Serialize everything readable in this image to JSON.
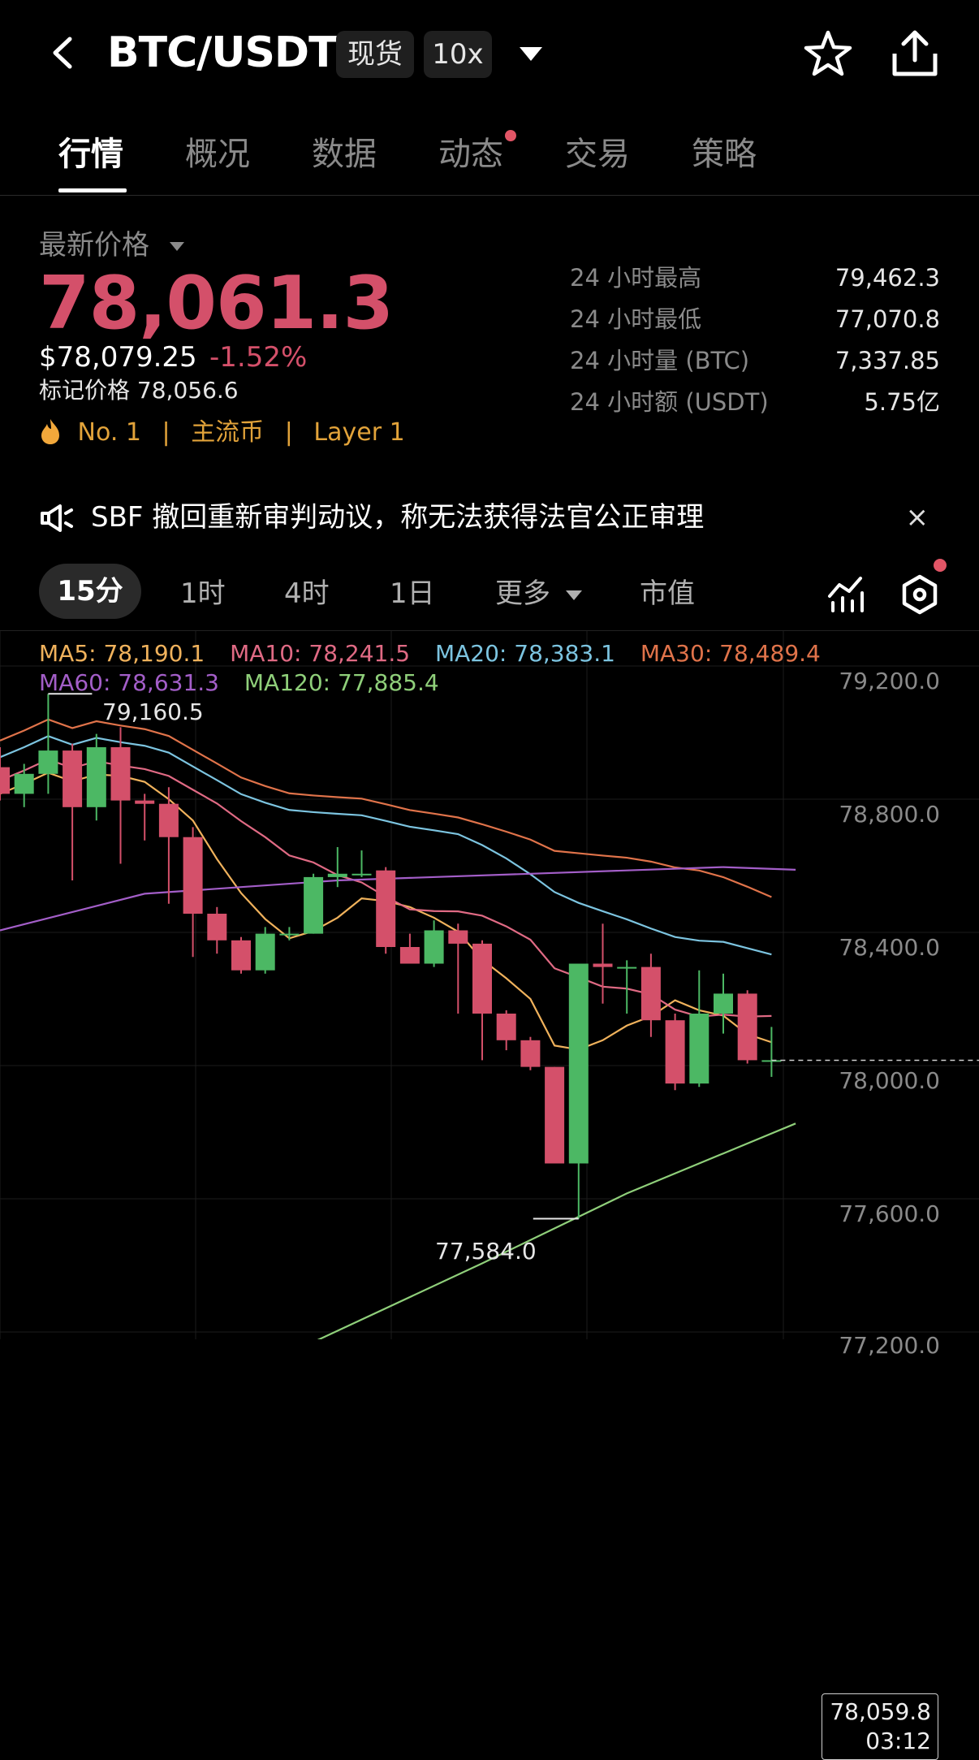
{
  "header": {
    "pair": "BTC/USDT",
    "market_tag": "现货",
    "leverage_tag": "10x",
    "icons": [
      "back-icon",
      "dropdown-caret-icon",
      "star-icon",
      "share-icon"
    ]
  },
  "tabs": [
    {
      "label": "行情",
      "active": true
    },
    {
      "label": "概况",
      "active": false
    },
    {
      "label": "数据",
      "active": false
    },
    {
      "label": "动态",
      "active": false,
      "badge": true
    },
    {
      "label": "交易",
      "active": false
    },
    {
      "label": "策略",
      "active": false
    }
  ],
  "price": {
    "latest_label": "最新价格",
    "last": "78,061.3",
    "usd": "$78,079.25",
    "change": "-1.52%",
    "mark_label": "标记价格",
    "mark": "78,056.6",
    "rank": "No. 1",
    "tag1": "主流币",
    "tag2": "Layer 1"
  },
  "stats": [
    {
      "label": "24 小时最高",
      "value": "79,462.3"
    },
    {
      "label": "24 小时最低",
      "value": "77,070.8"
    },
    {
      "label": "24 小时量 (BTC)",
      "value": "7,337.85"
    },
    {
      "label": "24 小时额 (USDT)",
      "value": "5.75亿"
    }
  ],
  "news": {
    "text": "SBF 撤回重新审判动议，称无法获得法官公正审理",
    "close": "×"
  },
  "intervals": {
    "items": [
      "15分",
      "1时",
      "4时",
      "1日",
      "更多",
      "市值"
    ],
    "active": "15分"
  },
  "colors": {
    "up": "#4cb864",
    "down": "#d4506a",
    "ma5": "#f0b25c",
    "ma10": "#e06a84",
    "ma20": "#7cc4e0",
    "ma30": "#e0734a",
    "ma60": "#a35ec8",
    "ma120": "#8fcf7a",
    "orange": "#e2a33a"
  },
  "chart_data": {
    "type": "candlestick",
    "interval": "15分",
    "y_ticks": [
      "79,200.0",
      "78,800.0",
      "78,400.0",
      "78,000.0",
      "77,600.0",
      "77,200.0"
    ],
    "ylim": [
      77150,
      79350
    ],
    "ma": [
      {
        "name": "MA5",
        "value": "78,190.1"
      },
      {
        "name": "MA10",
        "value": "78,241.5"
      },
      {
        "name": "MA20",
        "value": "78,383.1"
      },
      {
        "name": "MA30",
        "value": "78,489.4"
      },
      {
        "name": "MA60",
        "value": "78,631.3"
      },
      {
        "name": "MA120",
        "value": "77,885.4"
      }
    ],
    "high_marker": "79,160.5",
    "low_marker": "77,584.0",
    "current_price": "78,059.8",
    "countdown": "03:12",
    "candles": [
      {
        "o": 78940,
        "h": 79000,
        "l": 78840,
        "c": 78860
      },
      {
        "o": 78860,
        "h": 78950,
        "l": 78820,
        "c": 78920
      },
      {
        "o": 78920,
        "h": 79160,
        "l": 78860,
        "c": 78990
      },
      {
        "o": 78990,
        "h": 79010,
        "l": 78600,
        "c": 78820
      },
      {
        "o": 78820,
        "h": 79040,
        "l": 78780,
        "c": 79000
      },
      {
        "o": 79000,
        "h": 79060,
        "l": 78650,
        "c": 78840
      },
      {
        "o": 78840,
        "h": 78860,
        "l": 78720,
        "c": 78830
      },
      {
        "o": 78830,
        "h": 78880,
        "l": 78530,
        "c": 78730
      },
      {
        "o": 78730,
        "h": 78760,
        "l": 78370,
        "c": 78500
      },
      {
        "o": 78500,
        "h": 78520,
        "l": 78380,
        "c": 78420
      },
      {
        "o": 78420,
        "h": 78430,
        "l": 78320,
        "c": 78330
      },
      {
        "o": 78330,
        "h": 78460,
        "l": 78320,
        "c": 78440
      },
      {
        "o": 78440,
        "h": 78460,
        "l": 78420,
        "c": 78440
      },
      {
        "o": 78440,
        "h": 78620,
        "l": 78440,
        "c": 78610
      },
      {
        "o": 78610,
        "h": 78700,
        "l": 78580,
        "c": 78620
      },
      {
        "o": 78620,
        "h": 78690,
        "l": 78610,
        "c": 78620
      },
      {
        "o": 78630,
        "h": 78640,
        "l": 78380,
        "c": 78400
      },
      {
        "o": 78400,
        "h": 78440,
        "l": 78350,
        "c": 78350
      },
      {
        "o": 78350,
        "h": 78480,
        "l": 78340,
        "c": 78450
      },
      {
        "o": 78450,
        "h": 78470,
        "l": 78200,
        "c": 78410
      },
      {
        "o": 78410,
        "h": 78420,
        "l": 78060,
        "c": 78200
      },
      {
        "o": 78200,
        "h": 78210,
        "l": 78090,
        "c": 78120
      },
      {
        "o": 78120,
        "h": 78130,
        "l": 78030,
        "c": 78040
      },
      {
        "o": 78040,
        "h": 78040,
        "l": 77750,
        "c": 77750
      },
      {
        "o": 77750,
        "h": 78350,
        "l": 77584,
        "c": 78350
      },
      {
        "o": 78350,
        "h": 78470,
        "l": 78230,
        "c": 78340
      },
      {
        "o": 78340,
        "h": 78360,
        "l": 78200,
        "c": 78340
      },
      {
        "o": 78340,
        "h": 78380,
        "l": 78130,
        "c": 78180
      },
      {
        "o": 78180,
        "h": 78200,
        "l": 77970,
        "c": 77990
      },
      {
        "o": 77990,
        "h": 78330,
        "l": 77980,
        "c": 78200
      },
      {
        "o": 78200,
        "h": 78320,
        "l": 78140,
        "c": 78260
      },
      {
        "o": 78260,
        "h": 78270,
        "l": 78050,
        "c": 78060
      },
      {
        "o": 78060,
        "h": 78160,
        "l": 78010,
        "c": 78060
      }
    ]
  }
}
